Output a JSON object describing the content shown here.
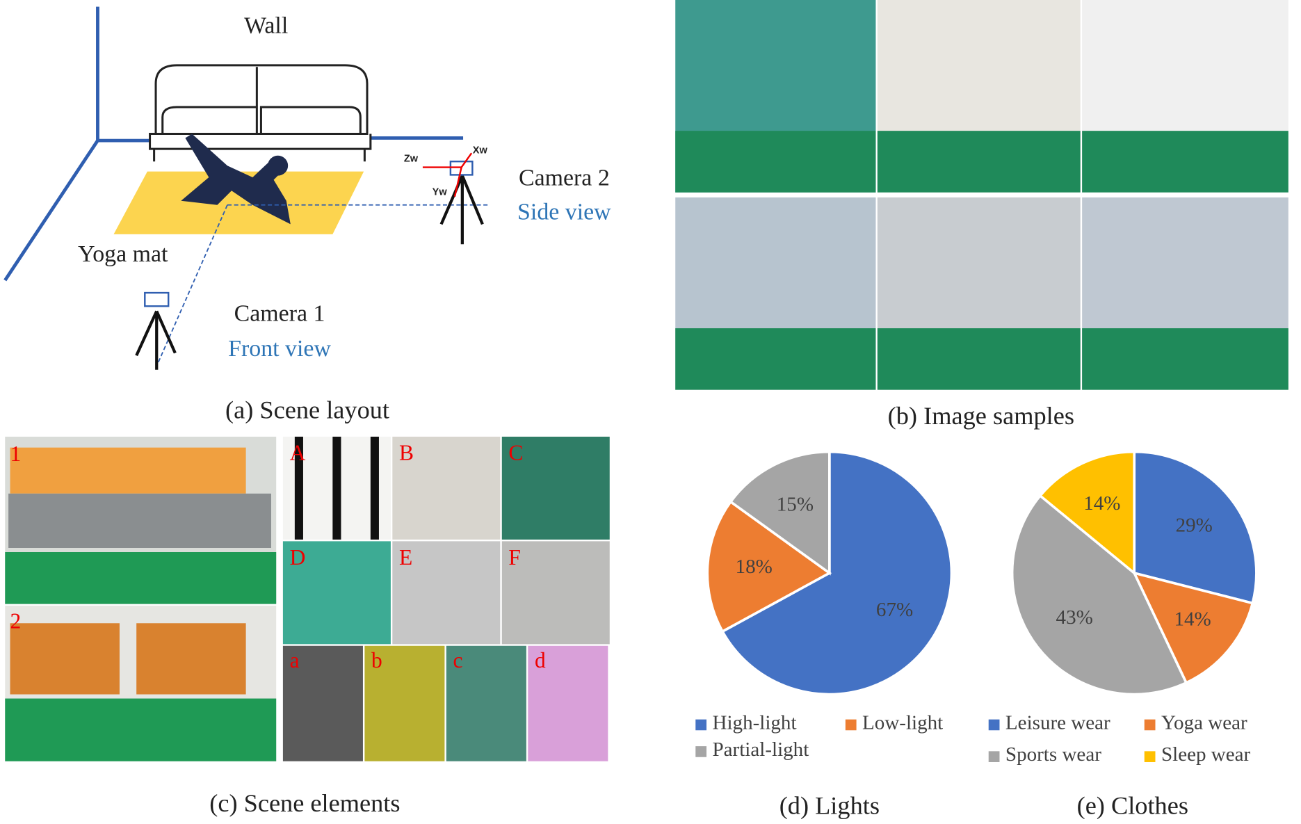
{
  "scene_layout": {
    "wall": "Wall",
    "yoga_mat": "Yoga mat",
    "camera1": "Camera 1",
    "front_view": "Front view",
    "camera2": "Camera 2",
    "side_view": "Side view",
    "axes": [
      "Zw",
      "Xw",
      "Yw"
    ],
    "caption": "(a) Scene layout"
  },
  "image_samples": {
    "caption": "(b) Image samples"
  },
  "scene_elements": {
    "furniture": [
      "1",
      "2"
    ],
    "backgrounds": [
      "A",
      "B",
      "C",
      "D",
      "E",
      "F"
    ],
    "mats": [
      "a",
      "b",
      "c",
      "d"
    ],
    "caption": "(c) Scene elements"
  },
  "chart_data": [
    {
      "type": "pie",
      "title": "(d) Lights",
      "categories": [
        "High-light",
        "Low-light",
        "Partial-light"
      ],
      "values": [
        67,
        18,
        15
      ],
      "value_labels": [
        "67%",
        "18%",
        "15%"
      ],
      "colors": [
        "#4472c4",
        "#ed7d31",
        "#a5a5a5"
      ]
    },
    {
      "type": "pie",
      "title": "(e) Clothes",
      "categories": [
        "Leisure wear",
        "Yoga wear",
        "Sports wear",
        "Sleep wear"
      ],
      "values": [
        29,
        14,
        43,
        14
      ],
      "value_labels": [
        "29%",
        "14%",
        "43%",
        "14%"
      ],
      "colors": [
        "#4472c4",
        "#ed7d31",
        "#a5a5a5",
        "#ffc000"
      ]
    }
  ]
}
